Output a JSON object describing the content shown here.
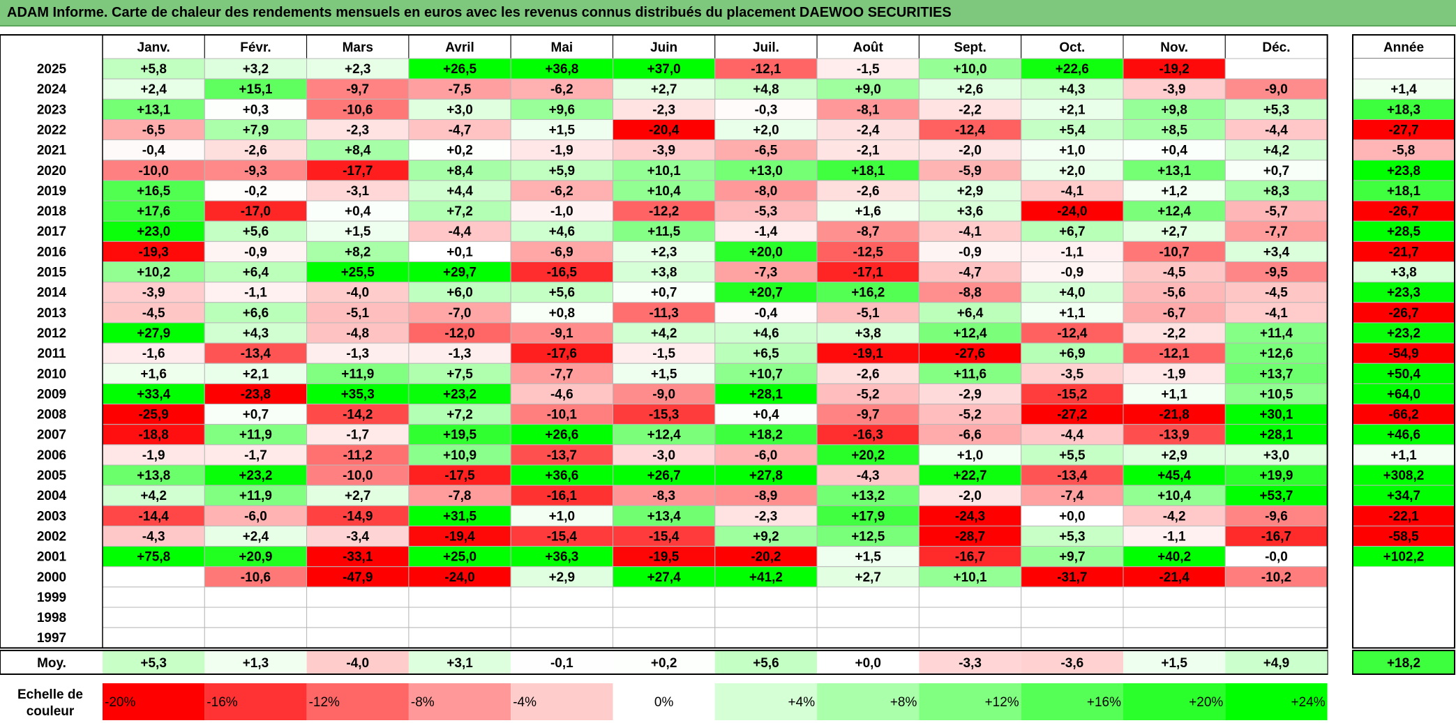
{
  "title": "ADAM Informe. Carte de chaleur des rendements mensuels en euros avec les revenus connus distribués du placement DAEWOO SECURITIES",
  "chart_data": {
    "type": "heatmap",
    "title": "ADAM Informe. Carte de chaleur des rendements mensuels en euros avec les revenus connus distribués du placement DAEWOO SECURITIES",
    "months": [
      "Janv.",
      "Févr.",
      "Mars",
      "Avril",
      "Mai",
      "Juin",
      "Juil.",
      "Août",
      "Sept.",
      "Oct.",
      "Nov.",
      "Déc."
    ],
    "year_header": "Année",
    "rows": [
      {
        "year": "2025",
        "values": [
          "+5,8",
          "+3,2",
          "+2,3",
          "+26,5",
          "+36,8",
          "+37,0",
          "-12,1",
          "-1,5",
          "+10,0",
          "+22,6",
          "-19,2",
          ""
        ],
        "annual": ""
      },
      {
        "year": "2024",
        "values": [
          "+2,4",
          "+15,1",
          "-9,7",
          "-7,5",
          "-6,2",
          "+2,7",
          "+4,8",
          "+9,0",
          "+2,6",
          "+4,3",
          "-3,9",
          "-9,0"
        ],
        "annual": "+1,4"
      },
      {
        "year": "2023",
        "values": [
          "+13,1",
          "+0,3",
          "-10,6",
          "+3,0",
          "+9,6",
          "-2,3",
          "-0,3",
          "-8,1",
          "-2,2",
          "+2,1",
          "+9,8",
          "+5,3"
        ],
        "annual": "+18,3"
      },
      {
        "year": "2022",
        "values": [
          "-6,5",
          "+7,9",
          "-2,3",
          "-4,7",
          "+1,5",
          "-20,4",
          "+2,0",
          "-2,4",
          "-12,4",
          "+5,4",
          "+8,5",
          "-4,4"
        ],
        "annual": "-27,7"
      },
      {
        "year": "2021",
        "values": [
          "-0,4",
          "-2,6",
          "+8,4",
          "+0,2",
          "-1,9",
          "-3,9",
          "-6,5",
          "-2,1",
          "-2,0",
          "+1,0",
          "+0,4",
          "+4,2"
        ],
        "annual": "-5,8"
      },
      {
        "year": "2020",
        "values": [
          "-10,0",
          "-9,3",
          "-17,7",
          "+8,4",
          "+5,9",
          "+10,1",
          "+13,0",
          "+18,1",
          "-5,9",
          "+2,0",
          "+13,1",
          "+0,7"
        ],
        "annual": "+23,8"
      },
      {
        "year": "2019",
        "values": [
          "+16,5",
          "-0,2",
          "-3,1",
          "+4,4",
          "-6,2",
          "+10,4",
          "-8,0",
          "-2,6",
          "+2,9",
          "-4,1",
          "+1,2",
          "+8,3"
        ],
        "annual": "+18,1"
      },
      {
        "year": "2018",
        "values": [
          "+17,6",
          "-17,0",
          "+0,4",
          "+7,2",
          "-1,0",
          "-12,2",
          "-5,3",
          "+1,6",
          "+3,6",
          "-24,0",
          "+12,4",
          "-5,7"
        ],
        "annual": "-26,7"
      },
      {
        "year": "2017",
        "values": [
          "+23,0",
          "+5,6",
          "+1,5",
          "-4,4",
          "+4,6",
          "+11,5",
          "-1,4",
          "-8,7",
          "-4,1",
          "+6,7",
          "+2,7",
          "-7,7"
        ],
        "annual": "+28,5"
      },
      {
        "year": "2016",
        "values": [
          "-19,3",
          "-0,9",
          "+8,2",
          "+0,1",
          "-6,9",
          "+2,3",
          "+20,0",
          "-12,5",
          "-0,9",
          "-1,1",
          "-10,7",
          "+3,4"
        ],
        "annual": "-21,7"
      },
      {
        "year": "2015",
        "values": [
          "+10,2",
          "+6,4",
          "+25,5",
          "+29,7",
          "-16,5",
          "+3,8",
          "-7,3",
          "-17,1",
          "-4,7",
          "-0,9",
          "-4,5",
          "-9,5"
        ],
        "annual": "+3,8"
      },
      {
        "year": "2014",
        "values": [
          "-3,9",
          "-1,1",
          "-4,0",
          "+6,0",
          "+5,6",
          "+0,7",
          "+20,7",
          "+16,2",
          "-8,8",
          "+4,0",
          "-5,6",
          "-4,5"
        ],
        "annual": "+23,3"
      },
      {
        "year": "2013",
        "values": [
          "-4,5",
          "+6,6",
          "-5,1",
          "-7,0",
          "+0,8",
          "-11,3",
          "-0,4",
          "-5,1",
          "+6,4",
          "+1,1",
          "-6,7",
          "-4,1"
        ],
        "annual": "-26,7"
      },
      {
        "year": "2012",
        "values": [
          "+27,9",
          "+4,3",
          "-4,8",
          "-12,0",
          "-9,1",
          "+4,2",
          "+4,6",
          "+3,8",
          "+12,4",
          "-12,4",
          "-2,2",
          "+11,4"
        ],
        "annual": "+23,2"
      },
      {
        "year": "2011",
        "values": [
          "-1,6",
          "-13,4",
          "-1,3",
          "-1,3",
          "-17,6",
          "-1,5",
          "+6,5",
          "-19,1",
          "-27,6",
          "+6,9",
          "-12,1",
          "+12,6"
        ],
        "annual": "-54,9"
      },
      {
        "year": "2010",
        "values": [
          "+1,6",
          "+2,1",
          "+11,9",
          "+7,5",
          "-7,7",
          "+1,5",
          "+10,7",
          "-2,6",
          "+11,6",
          "-3,5",
          "-1,9",
          "+13,7"
        ],
        "annual": "+50,4"
      },
      {
        "year": "2009",
        "values": [
          "+33,4",
          "-23,8",
          "+35,3",
          "+23,2",
          "-4,6",
          "-9,0",
          "+28,1",
          "-5,2",
          "-2,9",
          "-15,2",
          "+1,1",
          "+10,5"
        ],
        "annual": "+64,0"
      },
      {
        "year": "2008",
        "values": [
          "-25,9",
          "+0,7",
          "-14,2",
          "+7,2",
          "-10,1",
          "-15,3",
          "+0,4",
          "-9,7",
          "-5,2",
          "-27,2",
          "-21,8",
          "+30,1"
        ],
        "annual": "-66,2"
      },
      {
        "year": "2007",
        "values": [
          "-18,8",
          "+11,9",
          "-1,7",
          "+19,5",
          "+26,6",
          "+12,4",
          "+18,2",
          "-16,3",
          "-6,6",
          "-4,4",
          "-13,9",
          "+28,1"
        ],
        "annual": "+46,6"
      },
      {
        "year": "2006",
        "values": [
          "-1,9",
          "-1,7",
          "-11,2",
          "+10,9",
          "-13,7",
          "-3,0",
          "-6,0",
          "+20,2",
          "+1,0",
          "+5,5",
          "+2,9",
          "+3,0"
        ],
        "annual": "+1,1"
      },
      {
        "year": "2005",
        "values": [
          "+13,8",
          "+23,2",
          "-10,0",
          "-17,5",
          "+36,6",
          "+26,7",
          "+27,8",
          "-4,3",
          "+22,7",
          "-13,4",
          "+45,4",
          "+19,9"
        ],
        "annual": "+308,2"
      },
      {
        "year": "2004",
        "values": [
          "+4,2",
          "+11,9",
          "+2,7",
          "-7,8",
          "-16,1",
          "-8,3",
          "-8,9",
          "+13,2",
          "-2,0",
          "-7,4",
          "+10,4",
          "+53,7"
        ],
        "annual": "+34,7"
      },
      {
        "year": "2003",
        "values": [
          "-14,4",
          "-6,0",
          "-14,9",
          "+31,5",
          "+1,0",
          "+13,4",
          "-2,3",
          "+17,9",
          "-24,3",
          "+0,0",
          "-4,2",
          "-9,6"
        ],
        "annual": "-22,1"
      },
      {
        "year": "2002",
        "values": [
          "-4,3",
          "+2,4",
          "-3,4",
          "-19,4",
          "-15,4",
          "-15,4",
          "+9,2",
          "+12,5",
          "-28,7",
          "+5,3",
          "-1,1",
          "-16,7"
        ],
        "annual": "-58,5"
      },
      {
        "year": "2001",
        "values": [
          "+75,8",
          "+20,9",
          "-33,1",
          "+25,0",
          "+36,3",
          "-19,5",
          "-20,2",
          "+1,5",
          "-16,7",
          "+9,7",
          "+40,2",
          "-0,0"
        ],
        "annual": "+102,2"
      },
      {
        "year": "2000",
        "values": [
          "",
          "-10,6",
          "-47,9",
          "-24,0",
          "+2,9",
          "+27,4",
          "+41,2",
          "+2,7",
          "+10,1",
          "-31,7",
          "-21,4",
          "-10,2"
        ],
        "annual": ""
      },
      {
        "year": "1999",
        "values": [
          "",
          "",
          "",
          "",
          "",
          "",
          "",
          "",
          "",
          "",
          "",
          ""
        ],
        "annual": ""
      },
      {
        "year": "1998",
        "values": [
          "",
          "",
          "",
          "",
          "",
          "",
          "",
          "",
          "",
          "",
          "",
          ""
        ],
        "annual": ""
      },
      {
        "year": "1997",
        "values": [
          "",
          "",
          "",
          "",
          "",
          "",
          "",
          "",
          "",
          "",
          "",
          ""
        ],
        "annual": ""
      }
    ],
    "average": {
      "label": "Moy.",
      "values": [
        "+5,3",
        "+1,3",
        "-4,0",
        "+3,1",
        "-0,1",
        "+0,2",
        "+5,6",
        "+0,0",
        "-3,3",
        "-3,6",
        "+1,5",
        "+4,9"
      ],
      "annual": "+18,2"
    },
    "scale": {
      "label_line1": "Echelle de",
      "label_line2": "couleur",
      "stops": [
        "-20%",
        "-16%",
        "-12%",
        "-8%",
        "-4%",
        "0%",
        "+4%",
        "+8%",
        "+12%",
        "+16%",
        "+20%",
        "+24%"
      ],
      "stop_values": [
        -20,
        -16,
        -12,
        -8,
        -4,
        0,
        4,
        8,
        12,
        16,
        20,
        24
      ]
    },
    "colors": {
      "neg_max": "#ff0000",
      "pos_max": "#00ff00",
      "neutral": "#ffffff",
      "title_bg": "#7dc87d"
    }
  }
}
